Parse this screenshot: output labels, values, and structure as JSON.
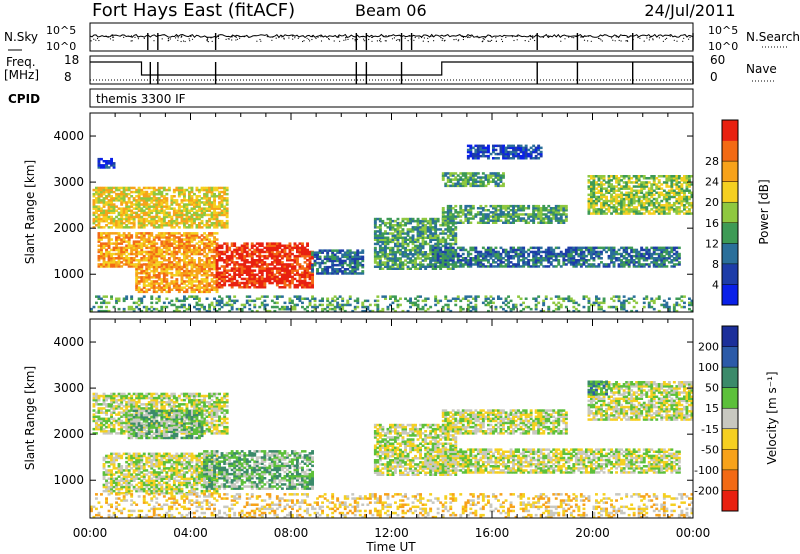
{
  "header": {
    "station": "Fort Hays East (fitACF)",
    "beam": "Beam 06",
    "date": "24/Jul/2011"
  },
  "strip_panels": {
    "nsky": {
      "left_label": "N.Sky",
      "right_label": "N.Search",
      "tick_top": "10^5",
      "tick_bottom": "10^0"
    },
    "freq": {
      "left_label_line1": "Freq.",
      "left_label_line2": "[MHz]",
      "right_label": "Nave",
      "left_tick_top": "18",
      "left_tick_bottom": "8",
      "right_tick_top": "60",
      "right_tick_bottom": "0"
    },
    "cpid": {
      "label": "CPID",
      "text": "themis 3300 IF"
    }
  },
  "chart_data": [
    {
      "type": "heatmap",
      "name": "power",
      "ylabel": "Slant Range [km]",
      "xlabel": "",
      "xlim": [
        "00:00",
        "24:00"
      ],
      "ylim": [
        180,
        4500
      ],
      "y_ticks": [
        1000,
        2000,
        3000,
        4000
      ],
      "x_tick_labels": [
        "00:00",
        "04:00",
        "08:00",
        "12:00",
        "16:00",
        "20:00",
        "00:00"
      ],
      "colorbar": {
        "label": "Power [dB]",
        "ticks": [
          4,
          8,
          12,
          16,
          20,
          24,
          28
        ],
        "colors": [
          "#0a20e8",
          "#1d3ca8",
          "#2a6f9a",
          "#3d9a55",
          "#8fc840",
          "#f5d020",
          "#f7a21a",
          "#f36a14",
          "#e82010"
        ]
      },
      "regions": [
        {
          "t": [
            0.1,
            5.4
          ],
          "r": [
            2000,
            2900
          ],
          "level": 5
        },
        {
          "t": [
            0.3,
            5.0
          ],
          "r": [
            1150,
            1900
          ],
          "level": 6
        },
        {
          "t": [
            1.8,
            5.0
          ],
          "r": [
            600,
            1200
          ],
          "level": 6
        },
        {
          "t": [
            5.0,
            8.8
          ],
          "r": [
            700,
            1650
          ],
          "level": 8
        },
        {
          "t": [
            8.8,
            10.8
          ],
          "r": [
            1000,
            1500
          ],
          "level": 2
        },
        {
          "t": [
            11.3,
            14.5
          ],
          "r": [
            1100,
            2200
          ],
          "level": 3
        },
        {
          "t": [
            13.5,
            23.5
          ],
          "r": [
            1150,
            1600
          ],
          "level": 2
        },
        {
          "t": [
            14.0,
            19.0
          ],
          "r": [
            2100,
            2500
          ],
          "level": 3
        },
        {
          "t": [
            14.0,
            16.5
          ],
          "r": [
            2900,
            3200
          ],
          "level": 3
        },
        {
          "t": [
            15.0,
            18.0
          ],
          "r": [
            3500,
            3800
          ],
          "level": 1
        },
        {
          "t": [
            19.8,
            24.0
          ],
          "r": [
            2300,
            3150
          ],
          "level": 4
        },
        {
          "t": [
            0.3,
            0.9
          ],
          "r": [
            3300,
            3500
          ],
          "level": 1
        },
        {
          "t": [
            0.0,
            24.0
          ],
          "r": [
            180,
            500
          ],
          "level": 3
        }
      ]
    },
    {
      "type": "heatmap",
      "name": "velocity",
      "ylabel": "Slant Range [km]",
      "xlabel": "Time UT",
      "xlim": [
        "00:00",
        "24:00"
      ],
      "ylim": [
        180,
        4500
      ],
      "y_ticks": [
        1000,
        2000,
        3000,
        4000
      ],
      "x_tick_labels": [
        "00:00",
        "04:00",
        "08:00",
        "12:00",
        "16:00",
        "20:00",
        "00:00"
      ],
      "colorbar": {
        "label": "Velocity [m s⁻¹]",
        "ticks": [
          200,
          100,
          50,
          15,
          -15,
          -50,
          -100,
          -200
        ],
        "colors": [
          "#1c2f9a",
          "#2b5aa8",
          "#3b8a6a",
          "#5cc03a",
          "#c8c8c0",
          "#f5d020",
          "#f7a21a",
          "#f36a14",
          "#e82010"
        ]
      },
      "regions": [
        {
          "t": [
            0.1,
            5.4
          ],
          "r": [
            2000,
            2900
          ],
          "level": 4
        },
        {
          "t": [
            1.5,
            4.5
          ],
          "r": [
            1900,
            2500
          ],
          "level": 3
        },
        {
          "t": [
            0.5,
            5.0
          ],
          "r": [
            700,
            1600
          ],
          "level": 4
        },
        {
          "t": [
            4.5,
            8.8
          ],
          "r": [
            800,
            1650
          ],
          "level": 3
        },
        {
          "t": [
            0.0,
            24.0
          ],
          "r": [
            180,
            700
          ],
          "level": 5
        },
        {
          "t": [
            11.3,
            14.5
          ],
          "r": [
            1100,
            2200
          ],
          "level": 4
        },
        {
          "t": [
            13.5,
            23.5
          ],
          "r": [
            1150,
            1650
          ],
          "level": 4
        },
        {
          "t": [
            14.0,
            19.0
          ],
          "r": [
            2000,
            2500
          ],
          "level": 4
        },
        {
          "t": [
            19.8,
            24.0
          ],
          "r": [
            2300,
            3150
          ],
          "level": 4
        },
        {
          "t": [
            19.8,
            20.6
          ],
          "r": [
            2850,
            3150
          ],
          "level": 2
        }
      ]
    }
  ]
}
